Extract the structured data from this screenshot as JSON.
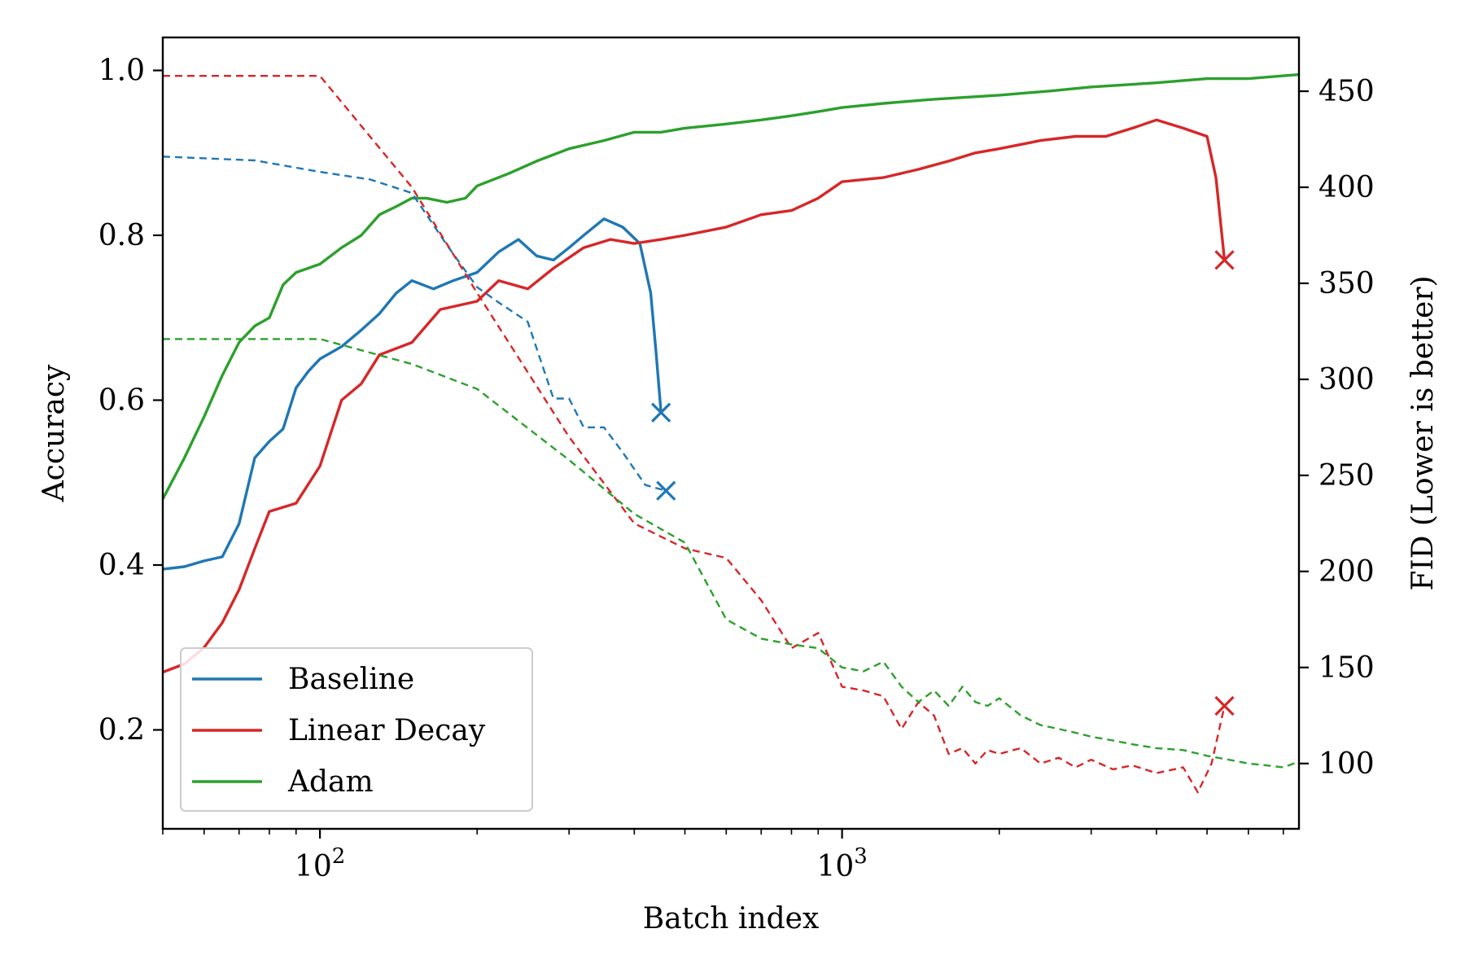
{
  "chart_data": {
    "type": "line",
    "xlabel": "Batch index",
    "ylabel_left": "Accuracy",
    "ylabel_right": "FID (Lower is better)",
    "xscale": "log",
    "xlim": [
      50,
      7500
    ],
    "ylim_left": [
      0.08,
      1.04
    ],
    "ylim_right": [
      66,
      478
    ],
    "x_ticks": [
      {
        "value": 100,
        "base": "10",
        "exp": "2"
      },
      {
        "value": 1000,
        "base": "10",
        "exp": "3"
      }
    ],
    "y_ticks_left": [
      "0.2",
      "0.4",
      "0.6",
      "0.8",
      "1.0"
    ],
    "y_ticks_right": [
      "100",
      "150",
      "200",
      "250",
      "300",
      "350",
      "400",
      "450"
    ],
    "grid": false,
    "legend_position": "lower-left",
    "colors": {
      "Baseline": "#1f77b4",
      "Linear Decay": "#d62728",
      "Adam": "#2ca02c"
    },
    "series": [
      {
        "name": "Baseline",
        "metric": "accuracy",
        "axis": "left",
        "style": "solid",
        "marker_end": "x",
        "points": [
          [
            50,
            0.395
          ],
          [
            55,
            0.398
          ],
          [
            60,
            0.405
          ],
          [
            65,
            0.41
          ],
          [
            70,
            0.45
          ],
          [
            75,
            0.53
          ],
          [
            80,
            0.55
          ],
          [
            85,
            0.565
          ],
          [
            90,
            0.615
          ],
          [
            95,
            0.635
          ],
          [
            100,
            0.65
          ],
          [
            110,
            0.665
          ],
          [
            120,
            0.685
          ],
          [
            130,
            0.705
          ],
          [
            140,
            0.73
          ],
          [
            150,
            0.745
          ],
          [
            165,
            0.735
          ],
          [
            180,
            0.745
          ],
          [
            200,
            0.755
          ],
          [
            220,
            0.78
          ],
          [
            240,
            0.795
          ],
          [
            260,
            0.775
          ],
          [
            280,
            0.77
          ],
          [
            300,
            0.785
          ],
          [
            320,
            0.8
          ],
          [
            350,
            0.82
          ],
          [
            380,
            0.81
          ],
          [
            410,
            0.79
          ],
          [
            430,
            0.73
          ],
          [
            440,
            0.66
          ],
          [
            450,
            0.585
          ]
        ]
      },
      {
        "name": "Linear Decay",
        "metric": "accuracy",
        "axis": "left",
        "style": "solid",
        "marker_end": "x",
        "points": [
          [
            50,
            0.27
          ],
          [
            55,
            0.28
          ],
          [
            60,
            0.3
          ],
          [
            65,
            0.33
          ],
          [
            70,
            0.37
          ],
          [
            75,
            0.42
          ],
          [
            80,
            0.465
          ],
          [
            90,
            0.475
          ],
          [
            100,
            0.52
          ],
          [
            110,
            0.6
          ],
          [
            120,
            0.62
          ],
          [
            130,
            0.655
          ],
          [
            150,
            0.67
          ],
          [
            170,
            0.71
          ],
          [
            200,
            0.72
          ],
          [
            220,
            0.745
          ],
          [
            250,
            0.735
          ],
          [
            280,
            0.76
          ],
          [
            320,
            0.785
          ],
          [
            360,
            0.795
          ],
          [
            400,
            0.79
          ],
          [
            450,
            0.795
          ],
          [
            500,
            0.8
          ],
          [
            600,
            0.81
          ],
          [
            700,
            0.825
          ],
          [
            800,
            0.83
          ],
          [
            900,
            0.845
          ],
          [
            1000,
            0.865
          ],
          [
            1200,
            0.87
          ],
          [
            1400,
            0.88
          ],
          [
            1600,
            0.89
          ],
          [
            1800,
            0.9
          ],
          [
            2000,
            0.905
          ],
          [
            2400,
            0.915
          ],
          [
            2800,
            0.92
          ],
          [
            3200,
            0.92
          ],
          [
            3600,
            0.93
          ],
          [
            4000,
            0.94
          ],
          [
            4500,
            0.93
          ],
          [
            5000,
            0.92
          ],
          [
            5200,
            0.87
          ],
          [
            5400,
            0.77
          ]
        ]
      },
      {
        "name": "Adam",
        "metric": "accuracy",
        "axis": "left",
        "style": "solid",
        "marker_end": null,
        "points": [
          [
            50,
            0.48
          ],
          [
            55,
            0.53
          ],
          [
            60,
            0.58
          ],
          [
            65,
            0.63
          ],
          [
            70,
            0.67
          ],
          [
            75,
            0.69
          ],
          [
            80,
            0.7
          ],
          [
            85,
            0.74
          ],
          [
            90,
            0.755
          ],
          [
            100,
            0.765
          ],
          [
            110,
            0.785
          ],
          [
            120,
            0.8
          ],
          [
            130,
            0.825
          ],
          [
            140,
            0.835
          ],
          [
            150,
            0.845
          ],
          [
            160,
            0.845
          ],
          [
            175,
            0.84
          ],
          [
            190,
            0.845
          ],
          [
            200,
            0.86
          ],
          [
            230,
            0.875
          ],
          [
            260,
            0.89
          ],
          [
            300,
            0.905
          ],
          [
            350,
            0.915
          ],
          [
            400,
            0.925
          ],
          [
            450,
            0.925
          ],
          [
            500,
            0.93
          ],
          [
            600,
            0.935
          ],
          [
            700,
            0.94
          ],
          [
            800,
            0.945
          ],
          [
            900,
            0.95
          ],
          [
            1000,
            0.955
          ],
          [
            1200,
            0.96
          ],
          [
            1500,
            0.965
          ],
          [
            2000,
            0.97
          ],
          [
            2500,
            0.975
          ],
          [
            3000,
            0.98
          ],
          [
            4000,
            0.985
          ],
          [
            5000,
            0.99
          ],
          [
            6000,
            0.99
          ],
          [
            7500,
            0.995
          ]
        ]
      },
      {
        "name": "Baseline",
        "metric": "FID",
        "axis": "right",
        "style": "dashed",
        "marker_end": "x",
        "points": [
          [
            50,
            416
          ],
          [
            75,
            414
          ],
          [
            100,
            408
          ],
          [
            125,
            404
          ],
          [
            150,
            397
          ],
          [
            175,
            370
          ],
          [
            200,
            348
          ],
          [
            220,
            340
          ],
          [
            250,
            330
          ],
          [
            280,
            290
          ],
          [
            300,
            290
          ],
          [
            320,
            275
          ],
          [
            350,
            275
          ],
          [
            380,
            262
          ],
          [
            420,
            245
          ],
          [
            460,
            242
          ]
        ]
      },
      {
        "name": "Linear Decay",
        "metric": "FID",
        "axis": "right",
        "style": "dashed",
        "marker_end": "x",
        "points": [
          [
            50,
            458
          ],
          [
            100,
            458
          ],
          [
            150,
            400
          ],
          [
            200,
            345
          ],
          [
            300,
            270
          ],
          [
            400,
            225
          ],
          [
            500,
            212
          ],
          [
            600,
            207
          ],
          [
            700,
            185
          ],
          [
            800,
            160
          ],
          [
            900,
            168
          ],
          [
            1000,
            140
          ],
          [
            1100,
            138
          ],
          [
            1200,
            135
          ],
          [
            1300,
            118
          ],
          [
            1400,
            132
          ],
          [
            1500,
            125
          ],
          [
            1600,
            105
          ],
          [
            1700,
            108
          ],
          [
            1800,
            100
          ],
          [
            1900,
            107
          ],
          [
            2000,
            105
          ],
          [
            2200,
            108
          ],
          [
            2400,
            100
          ],
          [
            2600,
            103
          ],
          [
            2800,
            98
          ],
          [
            3000,
            102
          ],
          [
            3300,
            97
          ],
          [
            3600,
            99
          ],
          [
            4000,
            95
          ],
          [
            4500,
            98
          ],
          [
            4800,
            85
          ],
          [
            5100,
            100
          ],
          [
            5400,
            130
          ]
        ]
      },
      {
        "name": "Adam",
        "metric": "FID",
        "axis": "right",
        "style": "dashed",
        "marker_end": null,
        "points": [
          [
            50,
            321
          ],
          [
            100,
            321
          ],
          [
            150,
            308
          ],
          [
            200,
            295
          ],
          [
            300,
            258
          ],
          [
            400,
            230
          ],
          [
            500,
            215
          ],
          [
            600,
            175
          ],
          [
            700,
            165
          ],
          [
            800,
            162
          ],
          [
            900,
            160
          ],
          [
            1000,
            150
          ],
          [
            1100,
            148
          ],
          [
            1200,
            153
          ],
          [
            1300,
            140
          ],
          [
            1400,
            132
          ],
          [
            1500,
            138
          ],
          [
            1600,
            130
          ],
          [
            1700,
            140
          ],
          [
            1800,
            132
          ],
          [
            1900,
            130
          ],
          [
            2000,
            134
          ],
          [
            2200,
            125
          ],
          [
            2400,
            120
          ],
          [
            2600,
            118
          ],
          [
            2800,
            116
          ],
          [
            3000,
            114
          ],
          [
            3300,
            112
          ],
          [
            3600,
            110
          ],
          [
            4000,
            108
          ],
          [
            4500,
            107
          ],
          [
            5000,
            104
          ],
          [
            5500,
            102
          ],
          [
            6000,
            100
          ],
          [
            6500,
            99
          ],
          [
            7000,
            98
          ],
          [
            7500,
            101
          ]
        ]
      }
    ],
    "legend": [
      "Baseline",
      "Linear Decay",
      "Adam"
    ]
  }
}
